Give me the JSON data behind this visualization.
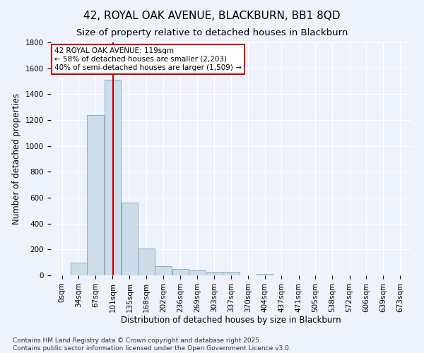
{
  "title": "42, ROYAL OAK AVENUE, BLACKBURN, BB1 8QD",
  "subtitle": "Size of property relative to detached houses in Blackburn",
  "xlabel": "Distribution of detached houses by size in Blackburn",
  "ylabel": "Number of detached properties",
  "bar_color": "#ccdce8",
  "bar_edge_color": "#7aaabf",
  "categories": [
    "0sqm",
    "34sqm",
    "67sqm",
    "101sqm",
    "135sqm",
    "168sqm",
    "202sqm",
    "236sqm",
    "269sqm",
    "303sqm",
    "337sqm",
    "370sqm",
    "404sqm",
    "437sqm",
    "471sqm",
    "505sqm",
    "538sqm",
    "572sqm",
    "606sqm",
    "639sqm",
    "673sqm"
  ],
  "values": [
    0,
    100,
    1240,
    1510,
    560,
    210,
    70,
    50,
    40,
    30,
    25,
    0,
    10,
    0,
    0,
    0,
    0,
    0,
    0,
    0,
    0
  ],
  "bin_edges": [
    0,
    34,
    67,
    101,
    135,
    168,
    202,
    236,
    269,
    303,
    337,
    370,
    404,
    437,
    471,
    505,
    538,
    572,
    606,
    639,
    673,
    707
  ],
  "property_line_x": 119,
  "annotation_line1": "42 ROYAL OAK AVENUE: 119sqm",
  "annotation_line2": "← 58% of detached houses are smaller (2,203)",
  "annotation_line3": "40% of semi-detached houses are larger (1,509) →",
  "annotation_box_color": "#ffffff",
  "annotation_box_edge_color": "#cc0000",
  "red_line_color": "#cc0000",
  "ylim": [
    0,
    1800
  ],
  "yticks": [
    0,
    200,
    400,
    600,
    800,
    1000,
    1200,
    1400,
    1600,
    1800
  ],
  "footer_line1": "Contains HM Land Registry data © Crown copyright and database right 2025.",
  "footer_line2": "Contains public sector information licensed under the Open Government Licence v3.0.",
  "background_color": "#eef2fb",
  "title_fontsize": 11,
  "subtitle_fontsize": 9.5,
  "axis_label_fontsize": 8.5,
  "tick_fontsize": 7.5,
  "annotation_fontsize": 7.5,
  "footer_fontsize": 6.5
}
